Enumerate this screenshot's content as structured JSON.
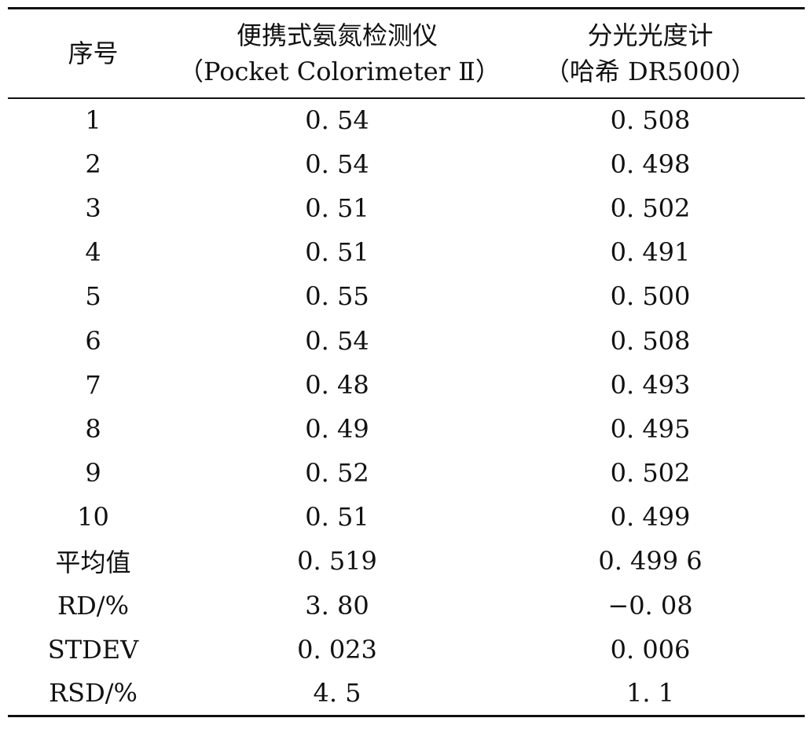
{
  "table": {
    "header": {
      "col1": "序号",
      "col2_line1": "便携式氨氮检测仪",
      "col2_line2": "（Pocket Colorimeter Ⅱ）",
      "col3_line1": "分光光度计",
      "col3_line2": "（哈希 DR5000）"
    },
    "rows": [
      {
        "label": "1",
        "portable": "0. 54",
        "spectro": "0. 508"
      },
      {
        "label": "2",
        "portable": "0. 54",
        "spectro": "0. 498"
      },
      {
        "label": "3",
        "portable": "0. 51",
        "spectro": "0. 502"
      },
      {
        "label": "4",
        "portable": "0. 51",
        "spectro": "0. 491"
      },
      {
        "label": "5",
        "portable": "0. 55",
        "spectro": "0. 500"
      },
      {
        "label": "6",
        "portable": "0. 54",
        "spectro": "0. 508"
      },
      {
        "label": "7",
        "portable": "0. 48",
        "spectro": "0. 493"
      },
      {
        "label": "8",
        "portable": "0. 49",
        "spectro": "0. 495"
      },
      {
        "label": "9",
        "portable": "0. 52",
        "spectro": "0. 502"
      },
      {
        "label": "10",
        "portable": "0. 51",
        "spectro": "0. 499"
      },
      {
        "label": "平均值",
        "portable": "0. 519",
        "spectro": "0. 499 6"
      },
      {
        "label": "RD/%",
        "portable": "3. 80",
        "spectro": "−0. 08"
      },
      {
        "label": "STDEV",
        "portable": "0. 023",
        "spectro": "0. 006"
      },
      {
        "label": "RSD/%",
        "portable": "4. 5",
        "spectro": "1. 1"
      }
    ]
  }
}
